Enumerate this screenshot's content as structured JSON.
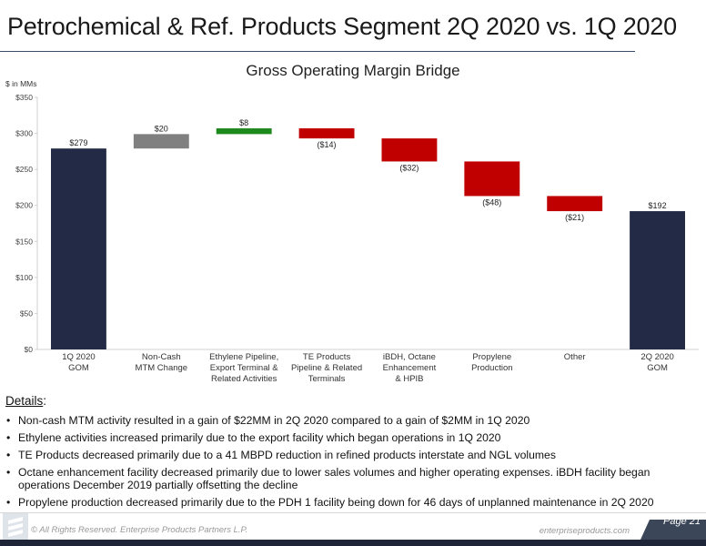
{
  "page": {
    "title": "Petrochemical & Ref. Products Segment 2Q 2020 vs. 1Q 2020"
  },
  "chart_data": {
    "type": "bar",
    "subtype": "waterfall",
    "title": "Gross Operating Margin Bridge",
    "ylabel": "$ in MMs",
    "ylim": [
      0,
      350
    ],
    "yticks": [
      0,
      50,
      100,
      150,
      200,
      250,
      300,
      350
    ],
    "ytick_labels": [
      "$0",
      "$50",
      "$100",
      "$150",
      "$200",
      "$250",
      "$300",
      "$350"
    ],
    "grid": false,
    "legend": "none",
    "categories": [
      [
        "1Q 2020",
        "GOM"
      ],
      [
        "Non-Cash",
        "MTM Change"
      ],
      [
        "Ethylene Pipeline,",
        "Export Terminal &",
        "Related Activities"
      ],
      [
        "TE Products",
        "Pipeline & Related",
        "Terminals"
      ],
      [
        "iBDH, Octane",
        "Enhancement",
        "& HPIB"
      ],
      [
        "Propylene",
        "Production"
      ],
      [
        "Other"
      ],
      [
        "2Q 2020",
        "GOM"
      ]
    ],
    "bars": [
      {
        "kind": "total",
        "start": 0,
        "end": 279,
        "label": "$279",
        "color": "#232a45"
      },
      {
        "kind": "delta",
        "start": 279,
        "end": 299,
        "label": "$20",
        "color": "#808080"
      },
      {
        "kind": "delta",
        "start": 299,
        "end": 307,
        "label": "$8",
        "color": "#1e8a1e"
      },
      {
        "kind": "delta",
        "start": 307,
        "end": 293,
        "label": "($14)",
        "color": "#c00000"
      },
      {
        "kind": "delta",
        "start": 293,
        "end": 261,
        "label": "($32)",
        "color": "#c00000"
      },
      {
        "kind": "delta",
        "start": 261,
        "end": 213,
        "label": "($48)",
        "color": "#c00000"
      },
      {
        "kind": "delta",
        "start": 213,
        "end": 192,
        "label": "($21)",
        "color": "#c00000"
      },
      {
        "kind": "total",
        "start": 0,
        "end": 192,
        "label": "$192",
        "color": "#232a45"
      }
    ]
  },
  "details": {
    "heading": "Details",
    "colon": ":",
    "bullets": [
      "Non-cash MTM activity resulted in a gain of $22MM in 2Q 2020 compared to a gain of $2MM in 1Q 2020",
      "Ethylene activities increased primarily due to the export facility which began operations in 1Q 2020",
      "TE Products decreased primarily due to a 41 MBPD reduction in refined products interstate and NGL volumes",
      "Octane enhancement facility decreased primarily due to lower sales volumes and higher operating expenses. iBDH facility began operations December 2019 partially offsetting the decline",
      "Propylene production decreased primarily due to the PDH 1 facility being down for 46 days of unplanned maintenance in 2Q 2020"
    ]
  },
  "footer": {
    "copyright": "© All Rights Reserved. Enterprise Products Partners L.P.",
    "website": "enterpriseproducts.com",
    "page": "Page 21"
  },
  "colors": {
    "total": "#232a45",
    "increase_mtm": "#808080",
    "increase": "#1e8a1e",
    "decrease": "#c00000",
    "footer_bar": "#1f2538"
  }
}
